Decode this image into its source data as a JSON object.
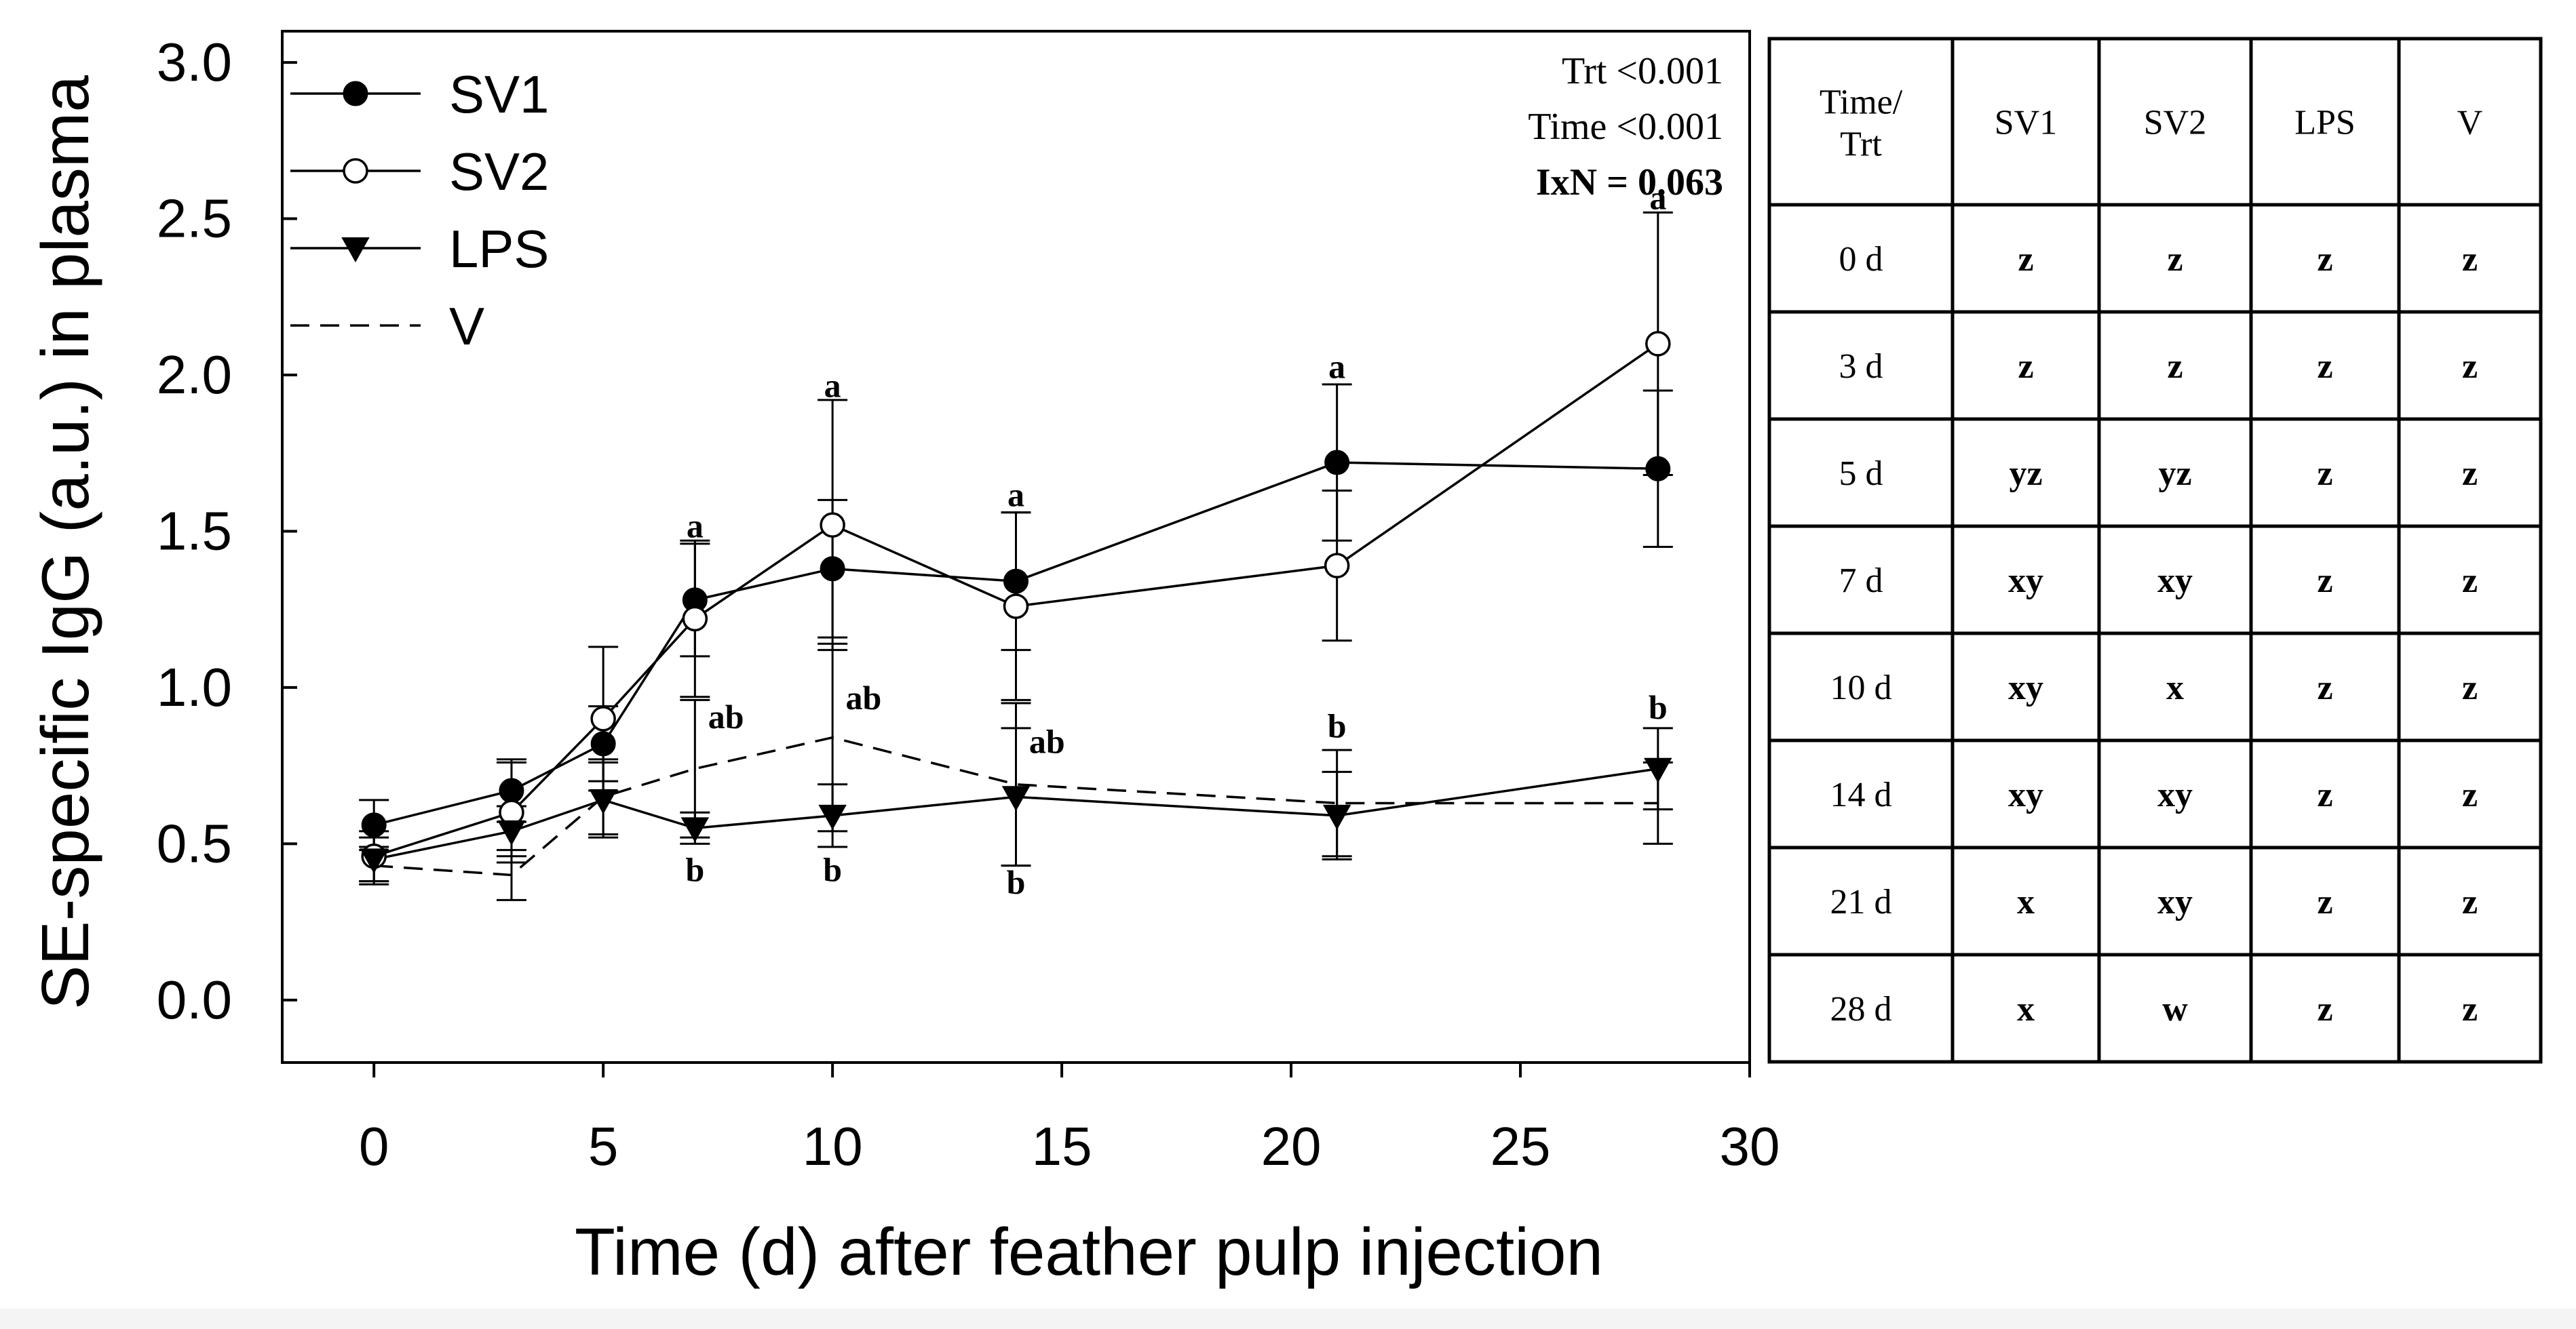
{
  "chart_data": {
    "type": "line",
    "xlabel": "Time (d) after feather pulp injection",
    "ylabel": "SE-specific IgG (a.u.) in plasma",
    "xlim": [
      -2,
      30
    ],
    "ylim": [
      -0.2,
      3.1
    ],
    "x_ticks": [
      0,
      5,
      10,
      15,
      20,
      25,
      30
    ],
    "y_ticks": [
      "0.0",
      "0.5",
      "1.0",
      "1.5",
      "2.0",
      "2.5",
      "3.0"
    ],
    "grid": false,
    "legend_position": "top-left",
    "stats": [
      "Trt <0.001",
      "Time <0.001",
      "IxN = 0.063"
    ],
    "series": [
      {
        "name": "SV1",
        "marker": "filled-circle",
        "line": "solid",
        "x": [
          0,
          3,
          5,
          7,
          10,
          14,
          21,
          28
        ],
        "y": [
          0.56,
          0.67,
          0.82,
          1.28,
          1.38,
          1.34,
          1.72,
          1.7
        ],
        "err": [
          0.08,
          0.1,
          0.12,
          0.18,
          0.22,
          0.22,
          0.25,
          0.25
        ]
      },
      {
        "name": "SV2",
        "marker": "open-circle",
        "line": "solid",
        "x": [
          0,
          3,
          5,
          7,
          10,
          14,
          21,
          28
        ],
        "y": [
          0.46,
          0.6,
          0.9,
          1.22,
          1.52,
          1.26,
          1.39,
          2.1
        ],
        "err": [
          0.08,
          0.16,
          0.23,
          0.25,
          0.4,
          0.3,
          0.24,
          0.42
        ]
      },
      {
        "name": "LPS",
        "marker": "filled-triangle-down",
        "line": "solid",
        "x": [
          0,
          3,
          5,
          7,
          10,
          14,
          21,
          28
        ],
        "y": [
          0.45,
          0.54,
          0.64,
          0.55,
          0.59,
          0.65,
          0.59,
          0.74
        ],
        "err": [
          0.07,
          0.08,
          0.12,
          0.05,
          0.1,
          0.22,
          0.14,
          0.13
        ]
      },
      {
        "name": "V",
        "marker": "none",
        "line": "dashed",
        "x": [
          0,
          3,
          5,
          7,
          10,
          14,
          21,
          28
        ],
        "y": [
          0.43,
          0.4,
          0.65,
          0.74,
          0.84,
          0.69,
          0.63,
          0.63
        ],
        "err": [
          0.06,
          0.08,
          0.12,
          0.22,
          0.3,
          0.26,
          0.17,
          0.13
        ]
      }
    ],
    "annotations": [
      {
        "x": 7,
        "y": 1.48,
        "text": "a"
      },
      {
        "x": 7.5,
        "y": 0.87,
        "text": "ab"
      },
      {
        "x": 7,
        "y": 0.38,
        "text": "b"
      },
      {
        "x": 10,
        "y": 1.93,
        "text": "a"
      },
      {
        "x": 10.5,
        "y": 0.93,
        "text": "ab"
      },
      {
        "x": 10,
        "y": 0.38,
        "text": "b"
      },
      {
        "x": 14,
        "y": 1.58,
        "text": "a"
      },
      {
        "x": 14.5,
        "y": 0.79,
        "text": "ab"
      },
      {
        "x": 14,
        "y": 0.34,
        "text": "b"
      },
      {
        "x": 21,
        "y": 1.99,
        "text": "a"
      },
      {
        "x": 21,
        "y": 0.84,
        "text": "b"
      },
      {
        "x": 28,
        "y": 2.53,
        "text": "a"
      },
      {
        "x": 28,
        "y": 0.9,
        "text": "b"
      }
    ]
  },
  "table": {
    "header": [
      "Time/\nTrt",
      "SV1",
      "SV2",
      "LPS",
      "V"
    ],
    "rows": [
      [
        "0 d",
        "z",
        "z",
        "z",
        "z"
      ],
      [
        "3 d",
        "z",
        "z",
        "z",
        "z"
      ],
      [
        "5 d",
        "yz",
        "yz",
        "z",
        "z"
      ],
      [
        "7 d",
        "xy",
        "xy",
        "z",
        "z"
      ],
      [
        "10 d",
        "xy",
        "x",
        "z",
        "z"
      ],
      [
        "14 d",
        "xy",
        "xy",
        "z",
        "z"
      ],
      [
        "21 d",
        "x",
        "xy",
        "z",
        "z"
      ],
      [
        "28 d",
        "x",
        "w",
        "z",
        "z"
      ]
    ]
  }
}
